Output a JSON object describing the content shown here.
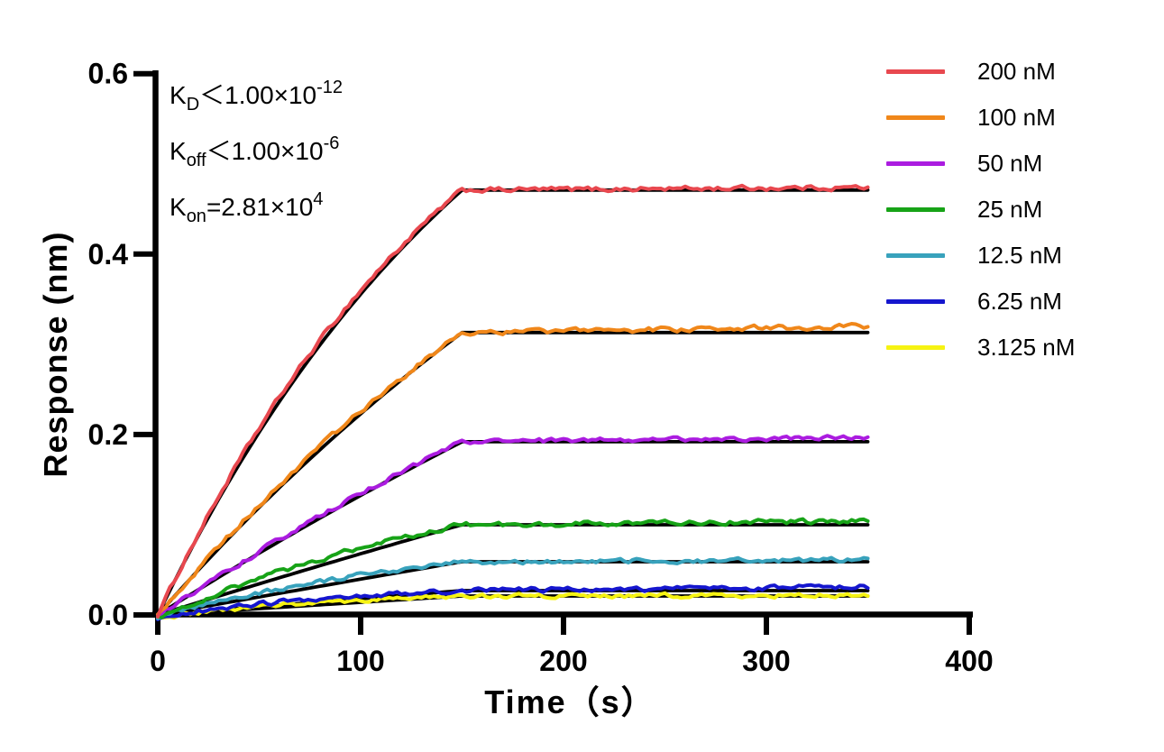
{
  "figure": {
    "background": "#ffffff",
    "axis_color": "#000000"
  },
  "annotation": {
    "lines": [
      {
        "base": "K",
        "sub": "D",
        "mid": "＜1.00×10",
        "sup": "-12"
      },
      {
        "base": "K",
        "sub": "off",
        "mid": "＜1.00×10",
        "sup": "-6"
      },
      {
        "base": "K",
        "sub": "on",
        "mid": "=2.81×10",
        "sup": "4"
      }
    ]
  },
  "chart_data": {
    "type": "line",
    "title": "",
    "xlabel": "Time（s）",
    "ylabel": "Response (nm)",
    "xlim": [
      0,
      400
    ],
    "ylim": [
      0,
      0.6
    ],
    "x_ticks": [
      "0",
      "100",
      "200",
      "300",
      "400"
    ],
    "y_ticks": [
      "0.0",
      "0.2",
      "0.4",
      "0.6"
    ],
    "grid": false,
    "legend_position": "right-outside",
    "model": "1:1 binding kinetics: association 0-150 s, R(t)=Rmax*(1-exp(-kobs*t)); dissociation 150-350 s essentially flat (koff<1e-6). Black curves are global fits.",
    "association_end_s": 150,
    "trace_end_s": 350,
    "fit_color": "#000000",
    "series": [
      {
        "name": "200 nM",
        "color": "#E8484F",
        "response_at_150s_nm": 0.471,
        "kobs_per_s": 0.00562,
        "noise_nm": 0.0036,
        "assoc_dev_nm": 0.005,
        "lag_nm": 0.0,
        "drift_nm": 0.003
      },
      {
        "name": "100 nM",
        "color": "#F0871A",
        "response_at_150s_nm": 0.313,
        "kobs_per_s": 0.00281,
        "noise_nm": 0.0036,
        "assoc_dev_nm": 0.003,
        "lag_nm": 0.0,
        "drift_nm": 0.007
      },
      {
        "name": "50 nM",
        "color": "#AB1CE0",
        "response_at_150s_nm": 0.192,
        "kobs_per_s": 0.0014,
        "noise_nm": 0.0033,
        "assoc_dev_nm": 0.002,
        "lag_nm": 0.001,
        "drift_nm": 0.005
      },
      {
        "name": "25 nM",
        "color": "#17A317",
        "response_at_150s_nm": 0.1,
        "kobs_per_s": 0.0007,
        "noise_nm": 0.0036,
        "assoc_dev_nm": 0.007,
        "lag_nm": 0.004,
        "drift_nm": 0.004
      },
      {
        "name": "12.5 nM",
        "color": "#38A2BC",
        "response_at_150s_nm": 0.059,
        "kobs_per_s": 0.00035,
        "noise_nm": 0.0033,
        "assoc_dev_nm": 0.005,
        "lag_nm": 0.003,
        "drift_nm": 0.002
      },
      {
        "name": "6.25 nM",
        "color": "#1516CE",
        "response_at_150s_nm": 0.027,
        "kobs_per_s": 0.000176,
        "noise_nm": 0.0035,
        "assoc_dev_nm": 0.004,
        "lag_nm": 0.004,
        "drift_nm": 0.004
      },
      {
        "name": "3.125 nM",
        "color": "#F6F312",
        "response_at_150s_nm": 0.021,
        "kobs_per_s": 8.8e-05,
        "noise_nm": 0.0032,
        "assoc_dev_nm": 0.003,
        "lag_nm": 0.004,
        "drift_nm": 0.001
      }
    ]
  }
}
